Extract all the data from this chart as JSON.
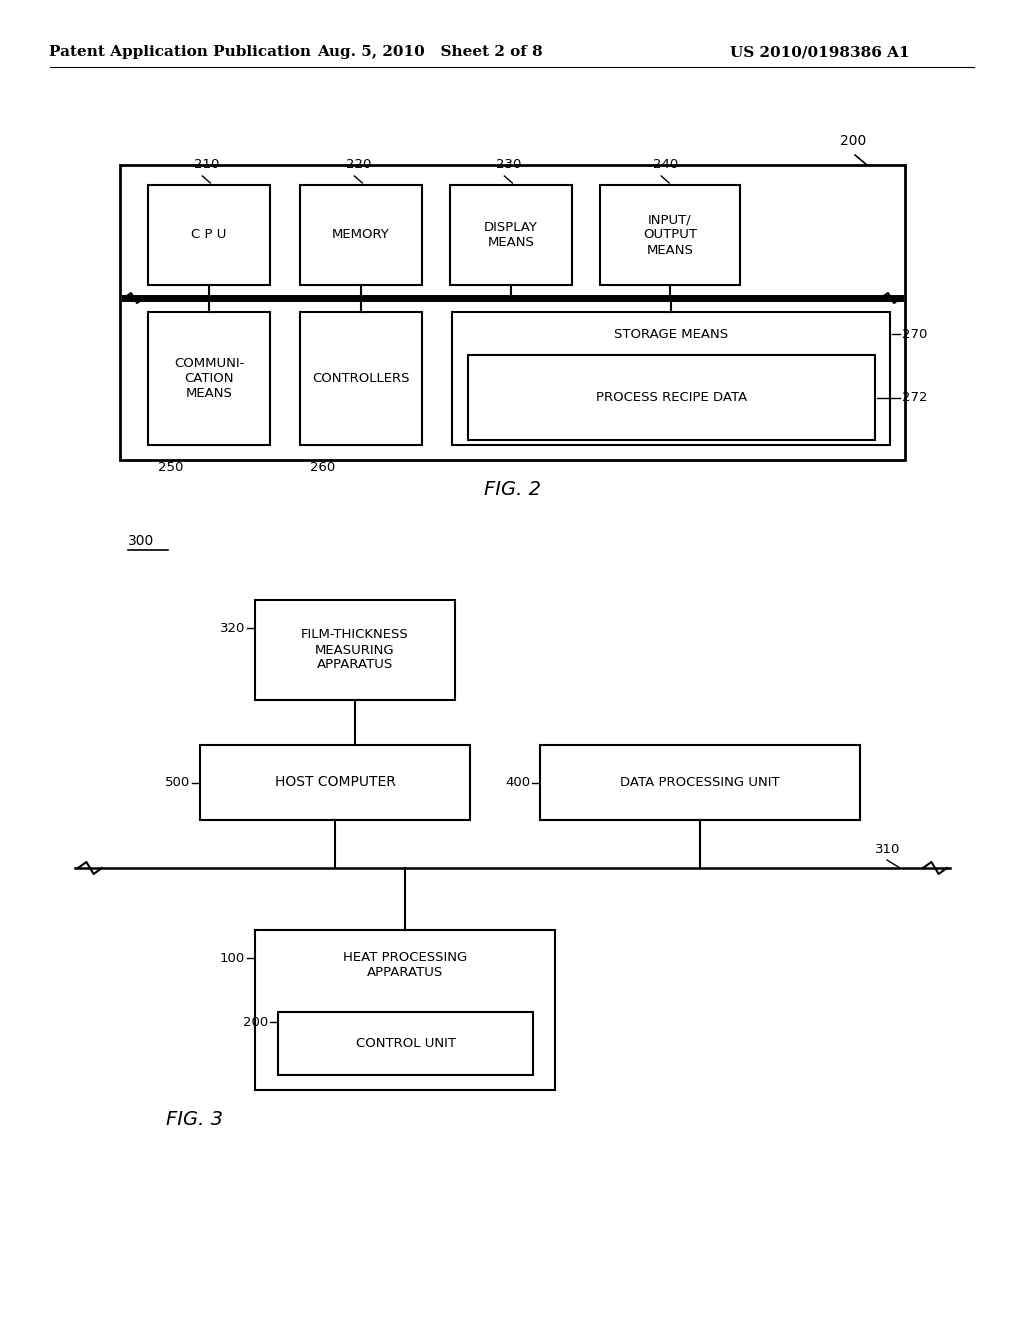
{
  "bg_color": "#ffffff",
  "header_left": "Patent Application Publication",
  "header_mid": "Aug. 5, 2010   Sheet 2 of 8",
  "header_right": "US 2010/0198386 A1",
  "fig2_label": "FIG. 2",
  "fig3_label": "FIG. 3"
}
